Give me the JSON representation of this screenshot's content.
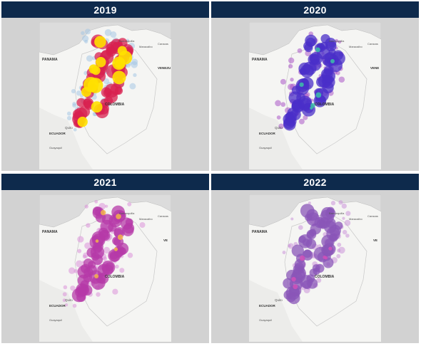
{
  "panels": [
    {
      "year": "2019",
      "palette": {
        "halo": "#9fc4e4",
        "core": "#d8204f",
        "hot": "#ffe100"
      },
      "labels": {
        "panama": "PANAMA",
        "colombia": "COLOMBIA",
        "ecuador": "ECUADOR",
        "quito": "Quito",
        "guayaquil": "Guayaquil",
        "caracas": "Caracas",
        "barranquilla": "Barranquilla",
        "venezuela": "VENEZU",
        "maracaibo": "Maracaibo"
      }
    },
    {
      "year": "2020",
      "palette": {
        "halo": "#a348c4",
        "core": "#4a2fc8",
        "hot": "#3cc0a8"
      },
      "labels": {
        "panama": "PANAMA",
        "colombia": "COLOMBIA",
        "ecuador": "ECUADOR",
        "quito": "Quito",
        "guayaquil": "Guayaquil",
        "caracas": "Caracas",
        "barranquilla": "Barranquilla",
        "venezuela": "VENE",
        "maracaibo": "Maracaibo"
      }
    },
    {
      "year": "2021",
      "palette": {
        "halo": "#d98ad8",
        "core": "#b53aa8",
        "hot": "#f2b34a"
      },
      "labels": {
        "panama": "PANAMA",
        "colombia": "COLOMBIA",
        "ecuador": "ECUADOR",
        "quito": "Quito",
        "guayaquil": "Guayaquil",
        "caracas": "Caracas",
        "barranquilla": "Barranquilla",
        "venezuela": "VE",
        "maracaibo": "Maracaibo"
      }
    },
    {
      "year": "2022",
      "palette": {
        "halo": "#c88bd8",
        "core": "#8a56b8",
        "hot": "#d050b8"
      },
      "labels": {
        "panama": "PANAMA",
        "colombia": "COLOMBIA",
        "ecuador": "ECUADOR",
        "quito": "Quito",
        "guayaquil": "Guayaquil",
        "caracas": "Caracas",
        "barranquilla": "Barranquilla",
        "venezuela": "VE",
        "maracaibo": "Maracaibo"
      }
    }
  ]
}
